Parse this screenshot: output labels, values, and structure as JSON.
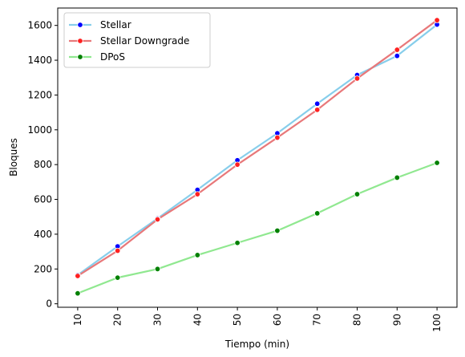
{
  "chart_data": {
    "type": "line",
    "title": "",
    "xlabel": "Tiempo (min)",
    "ylabel": "Bloques",
    "x": [
      10,
      20,
      30,
      40,
      50,
      60,
      70,
      80,
      90,
      100
    ],
    "x_tick_labels": [
      "10",
      "20",
      "30",
      "40",
      "50",
      "60",
      "70",
      "80",
      "90",
      "100"
    ],
    "xlim": [
      5,
      105
    ],
    "ylim": [
      -20,
      1700
    ],
    "y_ticks": [
      0,
      200,
      400,
      600,
      800,
      1000,
      1200,
      1400,
      1600
    ],
    "y_tick_labels": [
      "0",
      "200",
      "400",
      "600",
      "800",
      "1000",
      "1200",
      "1400",
      "1600"
    ],
    "grid": false,
    "legend_position": "top-left",
    "series": [
      {
        "name": "Stellar",
        "color": "#87ceeb",
        "marker_color": "#0000ff",
        "values": [
          165,
          330,
          490,
          655,
          825,
          980,
          1150,
          1315,
          1425,
          1605
        ]
      },
      {
        "name": "Stellar Downgrade",
        "color": "#e8787a",
        "marker_color": "#ff2020",
        "values": [
          160,
          305,
          485,
          630,
          800,
          955,
          1115,
          1295,
          1460,
          1630
        ]
      },
      {
        "name": "DPoS",
        "color": "#90e890",
        "marker_color": "#008000",
        "values": [
          60,
          150,
          200,
          280,
          350,
          420,
          520,
          630,
          725,
          810
        ]
      }
    ]
  }
}
